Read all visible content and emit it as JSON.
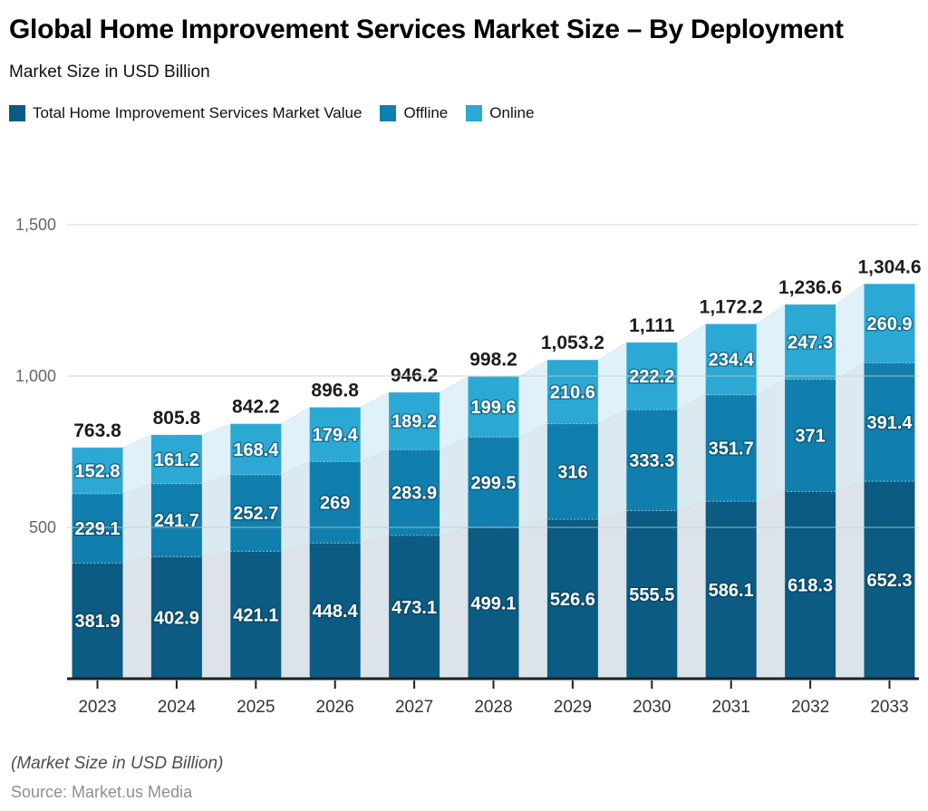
{
  "header": {
    "title": "Global Home Improvement Services Market Size – By Deployment",
    "subtitle": "Market Size in USD Billion"
  },
  "legend": {
    "items": [
      {
        "label": "Total Home Improvement Services Market Value",
        "color": "#0b5b83"
      },
      {
        "label": "Offline",
        "color": "#117fae"
      },
      {
        "label": "Online",
        "color": "#2ba9d4"
      }
    ]
  },
  "chart_data": {
    "type": "bar",
    "subtype": "stacked-bars-with-light-background-area",
    "title": "Global Home Improvement Services Market Size – By Deployment",
    "subtitle": "Market Size in USD Billion",
    "unit": "USD Billion",
    "categories": [
      "2023",
      "2024",
      "2025",
      "2026",
      "2027",
      "2028",
      "2029",
      "2030",
      "2031",
      "2032",
      "2033"
    ],
    "series": [
      {
        "name": "Total Home Improvement Services Market Value",
        "color": "#0b5b83",
        "area_tint": "#dce4e9",
        "values": [
          381.9,
          402.9,
          421.1,
          448.4,
          473.1,
          499.1,
          526.6,
          555.5,
          586.1,
          618.3,
          652.3
        ]
      },
      {
        "name": "Offline",
        "color": "#117fae",
        "area_tint": "#dbe9f1",
        "values": [
          229.1,
          241.7,
          252.7,
          269,
          283.9,
          299.5,
          316,
          333.3,
          351.7,
          371,
          391.4
        ]
      },
      {
        "name": "Online",
        "color": "#2ba9d4",
        "area_tint": "#e1f1f9",
        "values": [
          152.8,
          161.2,
          168.4,
          179.4,
          189.2,
          199.6,
          210.6,
          222.2,
          234.4,
          247.3,
          260.9
        ]
      }
    ],
    "totals": [
      763.8,
      805.8,
      842.2,
      896.8,
      946.2,
      998.2,
      1053.2,
      1111,
      1172.2,
      1236.6,
      1304.6
    ],
    "y_axis": {
      "ticks": [
        500,
        1000,
        1500
      ],
      "max": 1500,
      "gridlines": true,
      "gridline_color": "#c3cacf"
    },
    "axis_color": "#1f1f1f",
    "legend_position": "top-left"
  },
  "footer": {
    "note": "(Market Size in USD Billion)",
    "source": "Source: Market.us Media"
  }
}
